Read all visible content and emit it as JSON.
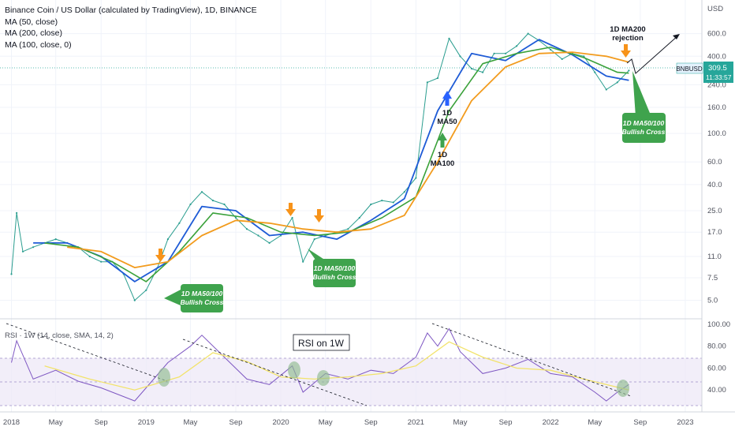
{
  "legend": {
    "symbol_line": "Binance Coin / US Dollar (calculated by TradingView), 1D, BINANCE",
    "ma50": "MA (50, close)",
    "ma200": "MA (200, close)",
    "ma100": "MA (100, close, 0)"
  },
  "rsi_legend": "RSI · 1W (14, close, SMA, 14, 2)",
  "rsi_box_label": "RSI on 1W",
  "price_badge": {
    "symbol": "BNBUSD",
    "price": "309.5",
    "countdown": "11:33:57"
  },
  "annotations": {
    "ma200_rejection_1": "1D MA200",
    "ma200_rejection_2": "rejection",
    "bull_cross_1_line1": "1D MA50/100",
    "bull_cross_1_line2": "Bullish Cross",
    "bull_cross_2_line1": "1D MA50/100",
    "bull_cross_2_line2": "Bullish Cross",
    "bull_cross_3_line1": "1D MA50/100",
    "bull_cross_3_line2": "Bullish Cross",
    "ma50_label_1": "1D",
    "ma50_label_2": "MA50",
    "ma100_label_1": "1D",
    "ma100_label_2": "MA100"
  },
  "colors": {
    "price": "#2a9d8f",
    "ma50": "#1e5bd6",
    "ma100": "#3aa13a",
    "ma200": "#f29b1d",
    "rsi": "#7e57c2",
    "rsi_ma": "#f2e36b",
    "green_box": "#3fa34d",
    "orange_arrow": "#f7931a",
    "blue_arrow": "#2962ff",
    "badge": "#26a69a"
  },
  "chart_data": [
    {
      "type": "line",
      "title": "Binance Coin / US Dollar (calculated by TradingView), 1D, BINANCE",
      "y_scale": "log",
      "y_unit": "USD",
      "y_ticks": [
        "600.0",
        "400.0",
        "240.0",
        "160.0",
        "100.0",
        "60.0",
        "40.0",
        "25.0",
        "17.0",
        "11.0",
        "7.5",
        "5.0"
      ],
      "y_tick_values": [
        600,
        400,
        240,
        160,
        100,
        60,
        40,
        25,
        17,
        11,
        7.5,
        5
      ],
      "x_ticks": [
        "2018",
        "May",
        "Sep",
        "2019",
        "May",
        "Sep",
        "2020",
        "May",
        "Sep",
        "2021",
        "May",
        "Sep",
        "2022",
        "May",
        "Sep",
        "2023"
      ],
      "x_tick_dates": [
        "2018-01",
        "2018-05",
        "2018-09",
        "2019-01",
        "2019-05",
        "2019-09",
        "2020-01",
        "2020-05",
        "2020-09",
        "2021-01",
        "2021-05",
        "2021-09",
        "2022-01",
        "2022-05",
        "2022-09",
        "2023-01"
      ],
      "last_price": 309.5,
      "series": [
        {
          "name": "BNBUSD",
          "points": [
            [
              "2018-01",
              8
            ],
            [
              "2018-01-15",
              24
            ],
            [
              "2018-02",
              12
            ],
            [
              "2018-03",
              13
            ],
            [
              "2018-04",
              14
            ],
            [
              "2018-05",
              15
            ],
            [
              "2018-06",
              14
            ],
            [
              "2018-07",
              13
            ],
            [
              "2018-08",
              11
            ],
            [
              "2018-09",
              10
            ],
            [
              "2018-10",
              10
            ],
            [
              "2018-11",
              8
            ],
            [
              "2018-12",
              5
            ],
            [
              "2019-01",
              6
            ],
            [
              "2019-02",
              9
            ],
            [
              "2019-03",
              15
            ],
            [
              "2019-04",
              20
            ],
            [
              "2019-05",
              28
            ],
            [
              "2019-06",
              35
            ],
            [
              "2019-07",
              30
            ],
            [
              "2019-08",
              28
            ],
            [
              "2019-09",
              22
            ],
            [
              "2019-10",
              18
            ],
            [
              "2019-11",
              16
            ],
            [
              "2019-12",
              14
            ],
            [
              "2020-01",
              16
            ],
            [
              "2020-02",
              22
            ],
            [
              "2020-03",
              10
            ],
            [
              "2020-04",
              15
            ],
            [
              "2020-05",
              16
            ],
            [
              "2020-06",
              17
            ],
            [
              "2020-07",
              18
            ],
            [
              "2020-08",
              22
            ],
            [
              "2020-09",
              28
            ],
            [
              "2020-10",
              30
            ],
            [
              "2020-11",
              29
            ],
            [
              "2020-12",
              35
            ],
            [
              "2021-01",
              45
            ],
            [
              "2021-02",
              250
            ],
            [
              "2021-03",
              270
            ],
            [
              "2021-04",
              550
            ],
            [
              "2021-05",
              400
            ],
            [
              "2021-06",
              320
            ],
            [
              "2021-07",
              300
            ],
            [
              "2021-08",
              420
            ],
            [
              "2021-09",
              420
            ],
            [
              "2021-10",
              480
            ],
            [
              "2021-11",
              600
            ],
            [
              "2021-12",
              530
            ],
            [
              "2022-01",
              450
            ],
            [
              "2022-02",
              380
            ],
            [
              "2022-03",
              420
            ],
            [
              "2022-04",
              400
            ],
            [
              "2022-05",
              300
            ],
            [
              "2022-06",
              220
            ],
            [
              "2022-07",
              250
            ],
            [
              "2022-08",
              309.5
            ]
          ]
        },
        {
          "name": "MA (50, close)",
          "points": [
            [
              "2018-03",
              14
            ],
            [
              "2018-06",
              14
            ],
            [
              "2018-09",
              11
            ],
            [
              "2018-12",
              7
            ],
            [
              "2019-03",
              10
            ],
            [
              "2019-06",
              27
            ],
            [
              "2019-09",
              25
            ],
            [
              "2019-12",
              16
            ],
            [
              "2020-03",
              17
            ],
            [
              "2020-06",
              15
            ],
            [
              "2020-09",
              21
            ],
            [
              "2020-12",
              31
            ],
            [
              "2021-03",
              150
            ],
            [
              "2021-06",
              420
            ],
            [
              "2021-09",
              370
            ],
            [
              "2021-12",
              540
            ],
            [
              "2022-03",
              410
            ],
            [
              "2022-06",
              280
            ],
            [
              "2022-08",
              260
            ]
          ]
        },
        {
          "name": "MA (100, close, 0)",
          "points": [
            [
              "2018-04",
              14
            ],
            [
              "2018-07",
              13
            ],
            [
              "2018-10",
              10
            ],
            [
              "2019-01",
              7
            ],
            [
              "2019-04",
              12
            ],
            [
              "2019-07",
              24
            ],
            [
              "2019-10",
              22
            ],
            [
              "2020-01",
              17
            ],
            [
              "2020-04",
              16
            ],
            [
              "2020-07",
              17
            ],
            [
              "2020-10",
              22
            ],
            [
              "2021-01",
              32
            ],
            [
              "2021-04",
              150
            ],
            [
              "2021-07",
              350
            ],
            [
              "2021-10",
              420
            ],
            [
              "2022-01",
              470
            ],
            [
              "2022-04",
              390
            ],
            [
              "2022-07",
              300
            ],
            [
              "2022-08",
              295
            ]
          ]
        },
        {
          "name": "MA (200, close)",
          "points": [
            [
              "2018-06",
              13
            ],
            [
              "2018-09",
              12
            ],
            [
              "2018-12",
              9
            ],
            [
              "2019-03",
              10
            ],
            [
              "2019-06",
              16
            ],
            [
              "2019-09",
              21
            ],
            [
              "2019-12",
              20
            ],
            [
              "2020-03",
              18
            ],
            [
              "2020-06",
              17
            ],
            [
              "2020-09",
              18
            ],
            [
              "2020-12",
              23
            ],
            [
              "2021-03",
              60
            ],
            [
              "2021-06",
              180
            ],
            [
              "2021-09",
              330
            ],
            [
              "2021-12",
              420
            ],
            [
              "2022-03",
              430
            ],
            [
              "2022-06",
              400
            ],
            [
              "2022-08",
              360
            ]
          ]
        }
      ]
    },
    {
      "type": "line",
      "title": "RSI · 1W (14, close, SMA, 14, 2)",
      "y_ticks": [
        "100.00",
        "80.00",
        "60.00",
        "40.00"
      ],
      "y_tick_values": [
        100,
        80,
        60,
        40
      ],
      "bands": [
        30,
        50,
        70
      ],
      "series": [
        {
          "name": "RSI",
          "points": [
            [
              "2018-01",
              65
            ],
            [
              "2018-01-15",
              85
            ],
            [
              "2018-03",
              50
            ],
            [
              "2018-05",
              58
            ],
            [
              "2018-07",
              48
            ],
            [
              "2018-09",
              42
            ],
            [
              "2018-11",
              34
            ],
            [
              "2018-12",
              30
            ],
            [
              "2019-01",
              42
            ],
            [
              "2019-03",
              65
            ],
            [
              "2019-05",
              80
            ],
            [
              "2019-06",
              90
            ],
            [
              "2019-08",
              70
            ],
            [
              "2019-10",
              50
            ],
            [
              "2019-12",
              45
            ],
            [
              "2020-02",
              62
            ],
            [
              "2020-03",
              38
            ],
            [
              "2020-05",
              55
            ],
            [
              "2020-07",
              50
            ],
            [
              "2020-09",
              58
            ],
            [
              "2020-11",
              55
            ],
            [
              "2021-01",
              70
            ],
            [
              "2021-02",
              92
            ],
            [
              "2021-03",
              80
            ],
            [
              "2021-04",
              96
            ],
            [
              "2021-05",
              75
            ],
            [
              "2021-07",
              55
            ],
            [
              "2021-09",
              60
            ],
            [
              "2021-11",
              68
            ],
            [
              "2022-01",
              55
            ],
            [
              "2022-03",
              52
            ],
            [
              "2022-05",
              38
            ],
            [
              "2022-06",
              30
            ],
            [
              "2022-07",
              38
            ],
            [
              "2022-08",
              45
            ]
          ]
        },
        {
          "name": "RSI MA",
          "points": [
            [
              "2018-04",
              62
            ],
            [
              "2018-08",
              50
            ],
            [
              "2018-12",
              40
            ],
            [
              "2019-04",
              52
            ],
            [
              "2019-07",
              74
            ],
            [
              "2019-10",
              66
            ],
            [
              "2020-01",
              52
            ],
            [
              "2020-04",
              50
            ],
            [
              "2020-07",
              52
            ],
            [
              "2020-10",
              55
            ],
            [
              "2021-01",
              62
            ],
            [
              "2021-04",
              84
            ],
            [
              "2021-07",
              70
            ],
            [
              "2021-10",
              60
            ],
            [
              "2022-01",
              58
            ],
            [
              "2022-04",
              50
            ],
            [
              "2022-08",
              40
            ]
          ]
        }
      ]
    }
  ]
}
